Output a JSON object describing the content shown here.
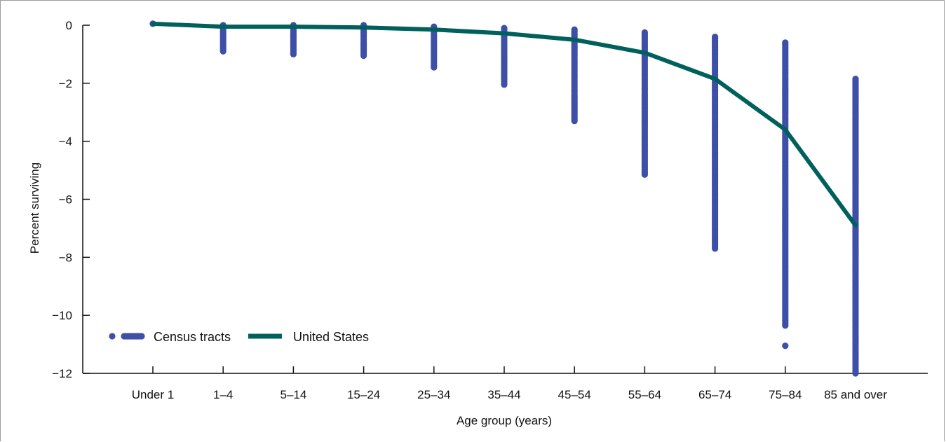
{
  "chart_data": {
    "type": "scatter",
    "xlabel": "Age group (years)",
    "ylabel": "Percent surviving",
    "categories": [
      "Under 1",
      "1–4",
      "5–14",
      "15–24",
      "25–34",
      "35–44",
      "45–54",
      "55–64",
      "65–74",
      "75–84",
      "85 and over"
    ],
    "ylim": [
      -12,
      0
    ],
    "yticks": [
      0,
      -2,
      -4,
      -6,
      -8,
      -10,
      -12
    ],
    "ytick_labels": [
      "0",
      "−2",
      "−4",
      "−6",
      "−8",
      "−10",
      "−12"
    ],
    "grid": false,
    "legend_position": "bottom-left",
    "colors": {
      "census_tracts": "#3e4fa8",
      "united_states": "#00605b",
      "axis": "#111111",
      "frame": "#9a9a9a"
    },
    "series": [
      {
        "name": "Census tracts",
        "kind": "scatter",
        "ranges": [
          {
            "category": "Under 1",
            "min": 0.05,
            "max": 0.05
          },
          {
            "category": "1–4",
            "min": -0.9,
            "max": 0.0
          },
          {
            "category": "5–14",
            "min": -1.0,
            "max": 0.0
          },
          {
            "category": "15–24",
            "min": -1.05,
            "max": 0.0
          },
          {
            "category": "25–34",
            "min": -1.45,
            "max": -0.05
          },
          {
            "category": "35–44",
            "min": -2.05,
            "max": -0.1
          },
          {
            "category": "45–54",
            "min": -3.3,
            "max": -0.15
          },
          {
            "category": "55–64",
            "min": -5.15,
            "max": -0.25
          },
          {
            "category": "65–74",
            "min": -7.7,
            "max": -0.4
          },
          {
            "category": "75–84",
            "min": -10.35,
            "max": -0.6
          },
          {
            "category": "85 and over",
            "min": -12.0,
            "max": -1.85
          }
        ],
        "outliers": [
          {
            "category": "75–84",
            "value": -11.05
          }
        ]
      },
      {
        "name": "United States",
        "kind": "line",
        "values": [
          0.05,
          -0.05,
          -0.05,
          -0.08,
          -0.15,
          -0.28,
          -0.5,
          -0.95,
          -1.85,
          -3.6,
          -6.9
        ]
      }
    ]
  }
}
